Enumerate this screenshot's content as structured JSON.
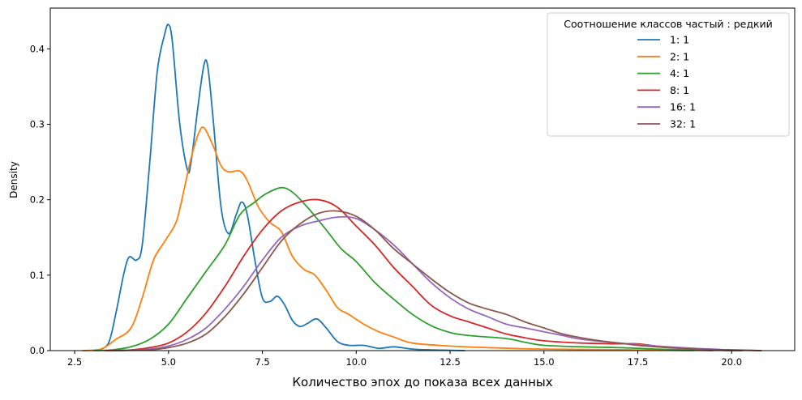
{
  "chart_data": {
    "type": "line",
    "title": "",
    "xlabel": "Количество эпох до показа всех данных",
    "ylabel": "Density",
    "xlim": [
      1.85,
      21.68
    ],
    "ylim": [
      0,
      0.454
    ],
    "xticks": [
      2.5,
      5.0,
      7.5,
      10.0,
      12.5,
      15.0,
      17.5,
      20.0
    ],
    "xtick_labels": [
      "2.5",
      "5.0",
      "7.5",
      "10.0",
      "12.5",
      "15.0",
      "17.5",
      "20.0"
    ],
    "yticks": [
      0.0,
      0.1,
      0.2,
      0.3,
      0.4
    ],
    "ytick_labels": [
      "0.0",
      "0.1",
      "0.2",
      "0.3",
      "0.4"
    ],
    "grid": false,
    "legend": {
      "title": "Соотношение классов частый : редкий",
      "placement": "top-right"
    },
    "series": [
      {
        "name": "1: 1",
        "color": "#1f77b4",
        "points": [
          [
            3.1,
            0
          ],
          [
            3.4,
            0.01
          ],
          [
            3.6,
            0.05
          ],
          [
            3.8,
            0.1
          ],
          [
            3.95,
            0.124
          ],
          [
            4.15,
            0.12
          ],
          [
            4.3,
            0.14
          ],
          [
            4.5,
            0.25
          ],
          [
            4.7,
            0.37
          ],
          [
            4.9,
            0.42
          ],
          [
            5.0,
            0.432
          ],
          [
            5.1,
            0.41
          ],
          [
            5.3,
            0.3
          ],
          [
            5.5,
            0.24
          ],
          [
            5.6,
            0.25
          ],
          [
            5.8,
            0.33
          ],
          [
            5.95,
            0.38
          ],
          [
            6.05,
            0.375
          ],
          [
            6.2,
            0.3
          ],
          [
            6.4,
            0.19
          ],
          [
            6.6,
            0.155
          ],
          [
            6.8,
            0.18
          ],
          [
            6.95,
            0.197
          ],
          [
            7.1,
            0.18
          ],
          [
            7.3,
            0.12
          ],
          [
            7.5,
            0.07
          ],
          [
            7.7,
            0.065
          ],
          [
            7.9,
            0.072
          ],
          [
            8.1,
            0.06
          ],
          [
            8.3,
            0.04
          ],
          [
            8.5,
            0.032
          ],
          [
            8.7,
            0.036
          ],
          [
            8.95,
            0.042
          ],
          [
            9.2,
            0.03
          ],
          [
            9.5,
            0.012
          ],
          [
            9.8,
            0.007
          ],
          [
            10.2,
            0.007
          ],
          [
            10.6,
            0.003
          ],
          [
            11.0,
            0.005
          ],
          [
            11.5,
            0.002
          ],
          [
            12.0,
            0.001
          ],
          [
            12.9,
            0
          ]
        ]
      },
      {
        "name": "2: 1",
        "color": "#ff7f0e",
        "points": [
          [
            2.7,
            0
          ],
          [
            3.2,
            0.002
          ],
          [
            3.6,
            0.015
          ],
          [
            4.0,
            0.03
          ],
          [
            4.3,
            0.07
          ],
          [
            4.6,
            0.12
          ],
          [
            4.9,
            0.145
          ],
          [
            5.2,
            0.17
          ],
          [
            5.4,
            0.21
          ],
          [
            5.6,
            0.255
          ],
          [
            5.8,
            0.288
          ],
          [
            5.95,
            0.295
          ],
          [
            6.2,
            0.27
          ],
          [
            6.4,
            0.245
          ],
          [
            6.6,
            0.237
          ],
          [
            6.9,
            0.238
          ],
          [
            7.1,
            0.225
          ],
          [
            7.4,
            0.19
          ],
          [
            7.7,
            0.17
          ],
          [
            8.0,
            0.158
          ],
          [
            8.3,
            0.125
          ],
          [
            8.6,
            0.108
          ],
          [
            8.9,
            0.1
          ],
          [
            9.2,
            0.08
          ],
          [
            9.5,
            0.057
          ],
          [
            9.8,
            0.048
          ],
          [
            10.2,
            0.035
          ],
          [
            10.6,
            0.025
          ],
          [
            11.0,
            0.018
          ],
          [
            11.5,
            0.01
          ],
          [
            12.5,
            0.006
          ],
          [
            13.5,
            0.004
          ],
          [
            15,
            0.002
          ],
          [
            17.5,
            0.001
          ],
          [
            19,
            0
          ]
        ]
      },
      {
        "name": "4: 1",
        "color": "#2ca02c",
        "points": [
          [
            3.0,
            0
          ],
          [
            3.5,
            0.001
          ],
          [
            4.0,
            0.005
          ],
          [
            4.5,
            0.015
          ],
          [
            5.0,
            0.035
          ],
          [
            5.5,
            0.07
          ],
          [
            6.0,
            0.105
          ],
          [
            6.5,
            0.14
          ],
          [
            6.9,
            0.18
          ],
          [
            7.3,
            0.197
          ],
          [
            7.6,
            0.208
          ],
          [
            8.0,
            0.216
          ],
          [
            8.3,
            0.21
          ],
          [
            8.7,
            0.19
          ],
          [
            9.2,
            0.16
          ],
          [
            9.6,
            0.135
          ],
          [
            10.0,
            0.118
          ],
          [
            10.5,
            0.09
          ],
          [
            11.0,
            0.068
          ],
          [
            11.5,
            0.048
          ],
          [
            12.0,
            0.033
          ],
          [
            12.5,
            0.024
          ],
          [
            13.0,
            0.02
          ],
          [
            14.0,
            0.016
          ],
          [
            14.5,
            0.011
          ],
          [
            15.0,
            0.007
          ],
          [
            16,
            0.005
          ],
          [
            17,
            0.004
          ],
          [
            18,
            0.002
          ],
          [
            19.5,
            0
          ]
        ]
      },
      {
        "name": "8: 1",
        "color": "#d62728",
        "points": [
          [
            3.3,
            0
          ],
          [
            4,
            0.001
          ],
          [
            4.5,
            0.004
          ],
          [
            5.0,
            0.01
          ],
          [
            5.5,
            0.025
          ],
          [
            6.0,
            0.05
          ],
          [
            6.5,
            0.085
          ],
          [
            7.0,
            0.125
          ],
          [
            7.5,
            0.16
          ],
          [
            8.0,
            0.185
          ],
          [
            8.5,
            0.197
          ],
          [
            9.0,
            0.2
          ],
          [
            9.5,
            0.19
          ],
          [
            10.0,
            0.165
          ],
          [
            10.5,
            0.14
          ],
          [
            11.0,
            0.11
          ],
          [
            11.5,
            0.085
          ],
          [
            12.0,
            0.06
          ],
          [
            12.5,
            0.046
          ],
          [
            13.0,
            0.038
          ],
          [
            13.5,
            0.03
          ],
          [
            14.0,
            0.022
          ],
          [
            14.5,
            0.017
          ],
          [
            15.0,
            0.013
          ],
          [
            16.0,
            0.01
          ],
          [
            17.0,
            0.009
          ],
          [
            17.5,
            0.009
          ],
          [
            18,
            0.006
          ],
          [
            19,
            0.002
          ],
          [
            20,
            0
          ],
          [
            20.3,
            0
          ]
        ]
      },
      {
        "name": "16: 1",
        "color": "#9467bd",
        "points": [
          [
            3.7,
            0
          ],
          [
            4.5,
            0.002
          ],
          [
            5.0,
            0.006
          ],
          [
            5.5,
            0.015
          ],
          [
            6.0,
            0.03
          ],
          [
            6.5,
            0.055
          ],
          [
            7.0,
            0.085
          ],
          [
            7.5,
            0.12
          ],
          [
            8.0,
            0.15
          ],
          [
            8.5,
            0.165
          ],
          [
            9.0,
            0.172
          ],
          [
            9.5,
            0.177
          ],
          [
            10.0,
            0.175
          ],
          [
            10.5,
            0.16
          ],
          [
            11.0,
            0.14
          ],
          [
            11.5,
            0.115
          ],
          [
            12.0,
            0.09
          ],
          [
            12.5,
            0.07
          ],
          [
            13.0,
            0.055
          ],
          [
            13.5,
            0.045
          ],
          [
            14.0,
            0.035
          ],
          [
            14.5,
            0.03
          ],
          [
            15.0,
            0.025
          ],
          [
            15.5,
            0.02
          ],
          [
            16.0,
            0.015
          ],
          [
            17.0,
            0.01
          ],
          [
            17.5,
            0.008
          ],
          [
            18.0,
            0.006
          ],
          [
            19.0,
            0.003
          ],
          [
            20.0,
            0.001
          ],
          [
            20.8,
            0
          ]
        ]
      },
      {
        "name": "32: 1",
        "color": "#8c564b",
        "points": [
          [
            3.5,
            0
          ],
          [
            4.5,
            0.001
          ],
          [
            5.0,
            0.004
          ],
          [
            5.5,
            0.01
          ],
          [
            6.0,
            0.022
          ],
          [
            6.5,
            0.045
          ],
          [
            7.0,
            0.075
          ],
          [
            7.5,
            0.11
          ],
          [
            8.0,
            0.145
          ],
          [
            8.5,
            0.168
          ],
          [
            9.0,
            0.182
          ],
          [
            9.5,
            0.185
          ],
          [
            10.0,
            0.178
          ],
          [
            10.5,
            0.16
          ],
          [
            11.0,
            0.135
          ],
          [
            11.5,
            0.115
          ],
          [
            12.0,
            0.095
          ],
          [
            12.5,
            0.077
          ],
          [
            13.0,
            0.063
          ],
          [
            13.5,
            0.055
          ],
          [
            14.0,
            0.048
          ],
          [
            14.5,
            0.038
          ],
          [
            15.0,
            0.03
          ],
          [
            15.5,
            0.022
          ],
          [
            16.0,
            0.017
          ],
          [
            16.5,
            0.013
          ],
          [
            17.0,
            0.01
          ],
          [
            17.5,
            0.007
          ],
          [
            18.0,
            0.005
          ],
          [
            19.0,
            0.002
          ],
          [
            20.0,
            0.001
          ],
          [
            20.8,
            0
          ]
        ]
      }
    ]
  }
}
